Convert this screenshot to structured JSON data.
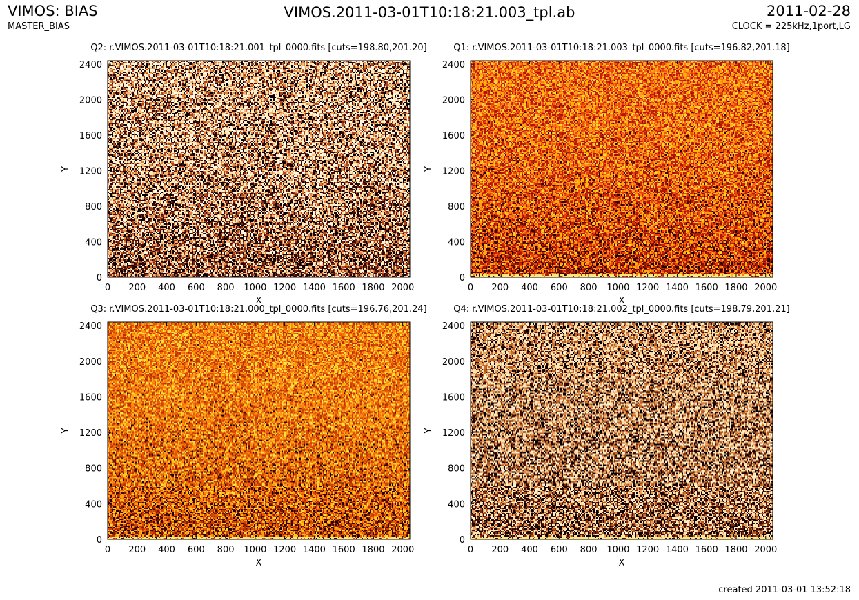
{
  "header": {
    "left_title": "VIMOS: BIAS",
    "left_subtitle": "MASTER_BIAS",
    "center_title": "VIMOS.2011-03-01T10:18:21.003_tpl.ab",
    "right_title": "2011-02-28",
    "right_subtitle": "CLOCK = 225kHz,1port,LG"
  },
  "footer": {
    "created": "created 2011-03-01 13:52:18"
  },
  "chart_data": [
    {
      "type": "heatmap",
      "title": "Q2: r.VIMOS.2011-03-01T10:18:21.001_tpl_0000.fits [cuts=198.80,201.20]",
      "xlabel": "X",
      "ylabel": "Y",
      "xlim": [
        0,
        2048
      ],
      "ylim": [
        0,
        2440
      ],
      "xticks": [
        0,
        200,
        400,
        600,
        800,
        1000,
        1200,
        1400,
        1600,
        1800,
        2000
      ],
      "yticks": [
        0,
        400,
        800,
        1200,
        1600,
        2000,
        2400
      ],
      "cuts": [
        198.8,
        201.2
      ],
      "colormap": "heat",
      "texture": "bright speckle, darker toward bottom"
    },
    {
      "type": "heatmap",
      "title": "Q1: r.VIMOS.2011-03-01T10:18:21.003_tpl_0000.fits [cuts=196.82,201.18]",
      "xlabel": "X",
      "ylabel": "Y",
      "xlim": [
        0,
        2048
      ],
      "ylim": [
        0,
        2440
      ],
      "xticks": [
        0,
        200,
        400,
        600,
        800,
        1000,
        1200,
        1400,
        1600,
        1800,
        2000
      ],
      "yticks": [
        0,
        400,
        800,
        1200,
        1600,
        2000,
        2400
      ],
      "cuts": [
        196.82,
        201.18
      ],
      "colormap": "heat",
      "texture": "orange-red noise, bright strip at bottom edge"
    },
    {
      "type": "heatmap",
      "title": "Q3: r.VIMOS.2011-03-01T10:18:21.000_tpl_0000.fits [cuts=196.76,201.24]",
      "xlabel": "X",
      "ylabel": "Y",
      "xlim": [
        0,
        2048
      ],
      "ylim": [
        0,
        2440
      ],
      "xticks": [
        0,
        200,
        400,
        600,
        800,
        1000,
        1200,
        1400,
        1600,
        1800,
        2000
      ],
      "yticks": [
        0,
        400,
        800,
        1200,
        1600,
        2000,
        2400
      ],
      "cuts": [
        196.76,
        201.24
      ],
      "colormap": "heat",
      "texture": "orange-yellow noise, bright strip at bottom edge"
    },
    {
      "type": "heatmap",
      "title": "Q4: r.VIMOS.2011-03-01T10:18:21.002_tpl_0000.fits [cuts=198.79,201.21]",
      "xlabel": "X",
      "ylabel": "Y",
      "xlim": [
        0,
        2048
      ],
      "ylim": [
        0,
        2440
      ],
      "xticks": [
        0,
        200,
        400,
        600,
        800,
        1000,
        1200,
        1400,
        1600,
        1800,
        2000
      ],
      "yticks": [
        0,
        400,
        800,
        1200,
        1600,
        2000,
        2400
      ],
      "cuts": [
        198.79,
        201.21
      ],
      "colormap": "heat",
      "texture": "pale speckle with dark noise, bright strip at bottom edge"
    }
  ]
}
